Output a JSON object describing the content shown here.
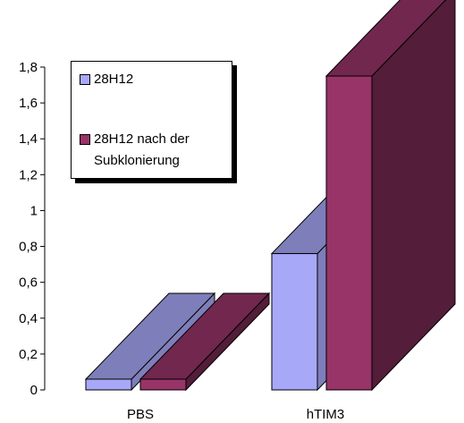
{
  "chart_data": {
    "type": "bar",
    "style": "3d-clustered",
    "categories": [
      "PBS",
      "hTIM3"
    ],
    "series": [
      {
        "name": "28H12",
        "values": [
          0.06,
          0.76
        ],
        "color": "#A8A8F8"
      },
      {
        "name": "28H12 nach der\nSubklonierung",
        "values": [
          0.06,
          1.75
        ],
        "color": "#983468"
      }
    ],
    "ylim": [
      0,
      1.8
    ],
    "yticks": [
      "0",
      "0,2",
      "0,4",
      "0,6",
      "0,8",
      "1",
      "1,2",
      "1,4",
      "1,6",
      "1,8"
    ],
    "title": "",
    "xlabel": "",
    "ylabel": "",
    "grid": false,
    "legend": "top-left"
  }
}
